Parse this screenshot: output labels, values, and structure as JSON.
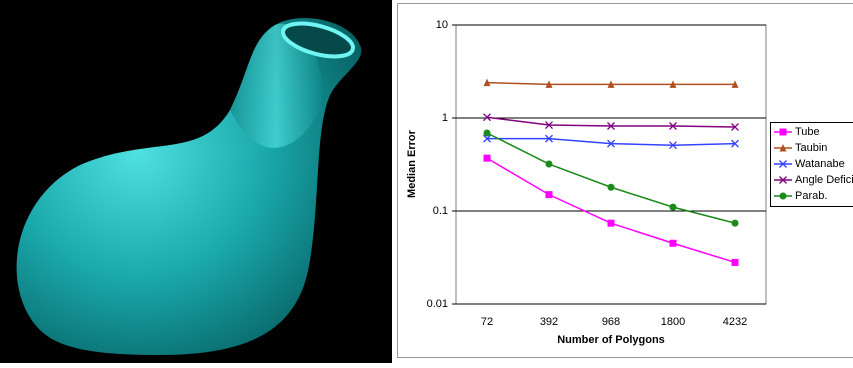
{
  "chart_data": {
    "type": "line",
    "x_label": "Number of Polygons",
    "y_label": "Median Error",
    "categories": [
      "72",
      "392",
      "968",
      "1800",
      "4232"
    ],
    "series": [
      {
        "name": "Tube",
        "color": "#ff00ff",
        "marker": "square",
        "values": [
          0.37,
          0.15,
          0.074,
          0.045,
          0.028
        ]
      },
      {
        "name": "Taubin",
        "color": "#b05020",
        "marker": "triangle",
        "values": [
          2.4,
          2.3,
          2.3,
          2.3,
          2.3
        ]
      },
      {
        "name": "Watanabe",
        "color": "#3344ff",
        "marker": "x",
        "values": [
          0.6,
          0.6,
          0.53,
          0.51,
          0.53
        ]
      },
      {
        "name": "Angle Defici",
        "color": "#800080",
        "marker": "x",
        "values": [
          1.02,
          0.84,
          0.82,
          0.82,
          0.8
        ]
      },
      {
        "name": "Parab.",
        "color": "#1a8a1a",
        "marker": "circle",
        "values": [
          0.69,
          0.32,
          0.18,
          0.11,
          0.074
        ]
      }
    ],
    "log_y": true,
    "ylim": [
      0.01,
      10
    ],
    "yticks": [
      0.01,
      0.1,
      1,
      10
    ],
    "grid": true,
    "legend": "right"
  }
}
